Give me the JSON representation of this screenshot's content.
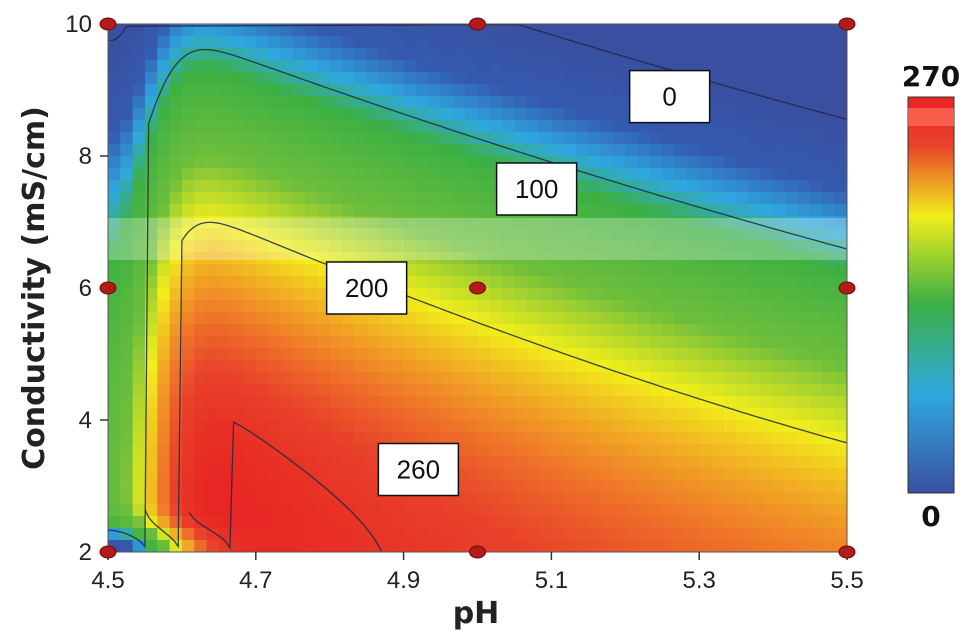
{
  "chart_data": {
    "type": "heatmap",
    "subtype": "contour",
    "xlabel": "pH",
    "ylabel": "Conductivity (mS/cm)",
    "xlim": [
      4.5,
      5.5
    ],
    "ylim": [
      2,
      10
    ],
    "x_ticks": [
      "4.5",
      "4.7",
      "4.9",
      "5.1",
      "5.3",
      "5.5"
    ],
    "y_ticks": [
      "2",
      "4",
      "6",
      "8",
      "10"
    ],
    "colorbar": {
      "min": 0,
      "max": 270,
      "min_label": "0",
      "max_label": "270",
      "colors": [
        "#3a4fa0",
        "#2fa8e0",
        "#3cb043",
        "#f2ee1c",
        "#e8422a",
        "#e82323"
      ]
    },
    "contour_levels": [
      {
        "level": 0,
        "label": "0"
      },
      {
        "level": 100,
        "label": "100"
      },
      {
        "level": 200,
        "label": "200"
      },
      {
        "level": 260,
        "label": "260"
      }
    ],
    "design_points": [
      {
        "x": 4.5,
        "y": 2
      },
      {
        "x": 4.5,
        "y": 6
      },
      {
        "x": 4.5,
        "y": 10
      },
      {
        "x": 5.0,
        "y": 2
      },
      {
        "x": 5.0,
        "y": 6
      },
      {
        "x": 5.0,
        "y": 10
      },
      {
        "x": 5.5,
        "y": 2
      },
      {
        "x": 5.5,
        "y": 6
      },
      {
        "x": 5.5,
        "y": 10
      }
    ],
    "grid": false
  }
}
